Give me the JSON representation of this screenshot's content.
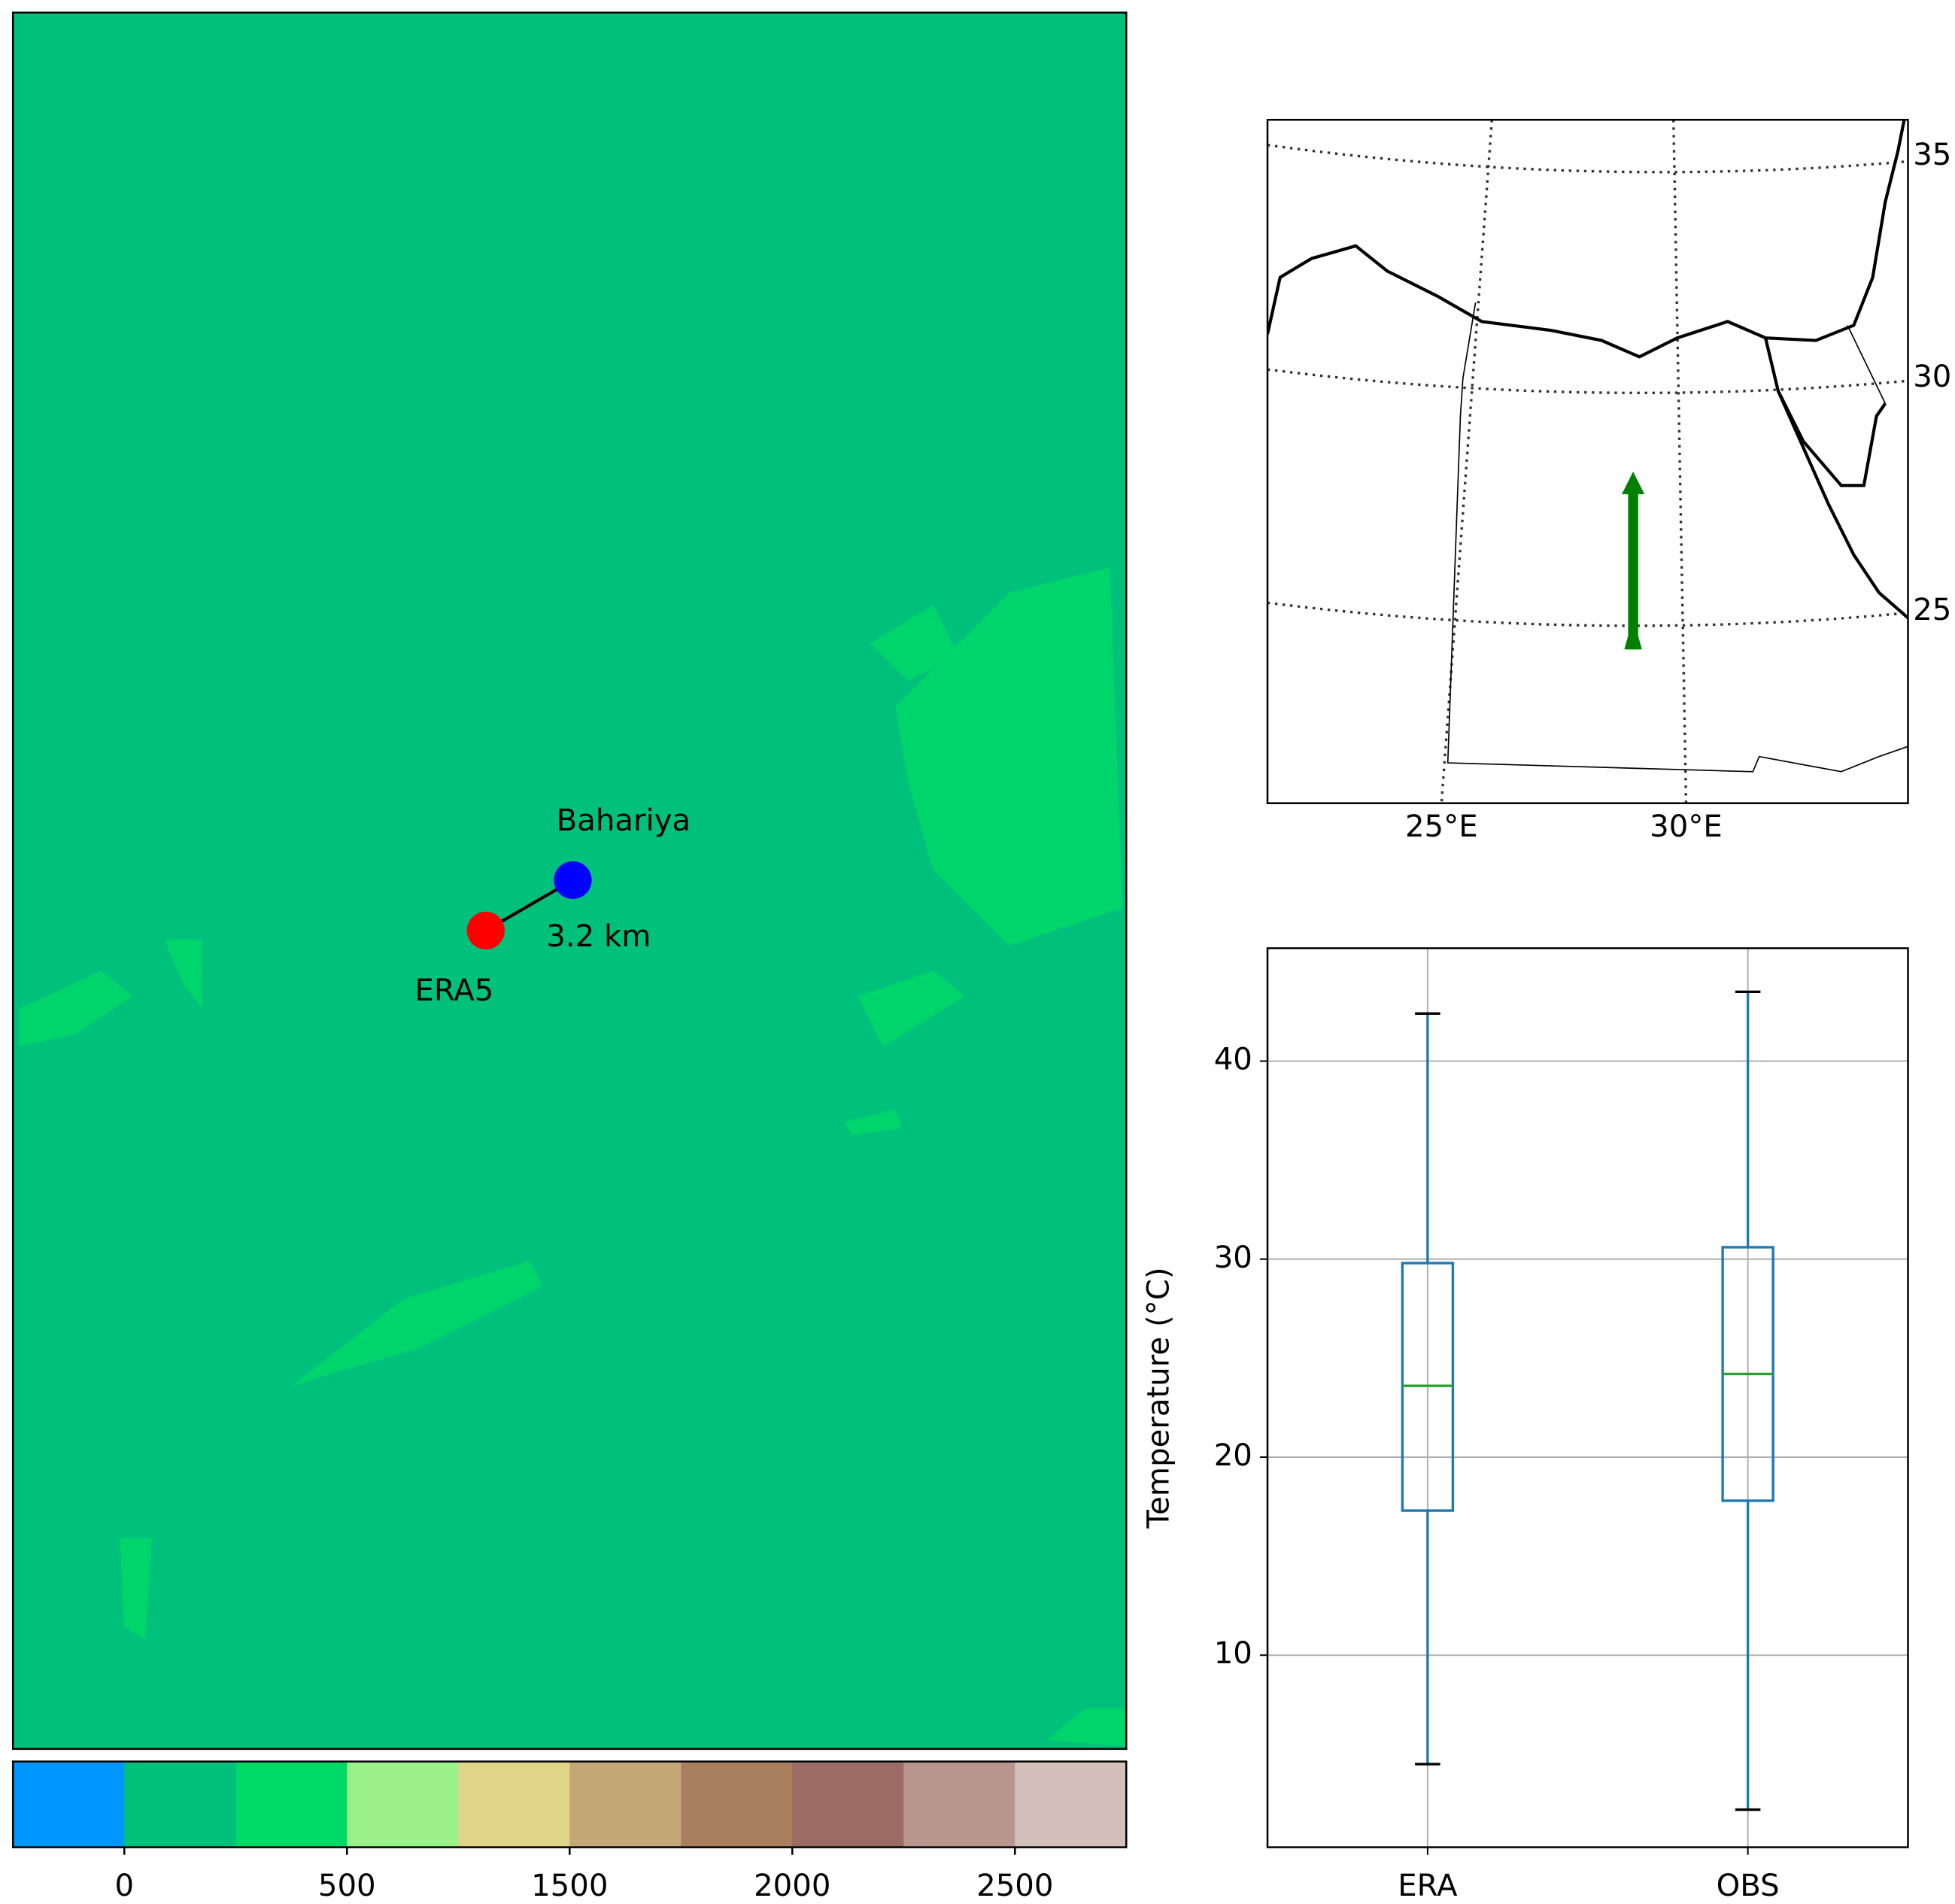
{
  "chart_data": [
    {
      "type": "map",
      "points": [
        {
          "name": "Bahariya",
          "color": "#0000ff"
        },
        {
          "name": "ERA5",
          "color": "#ff0000"
        }
      ],
      "annotation": "3.2 km",
      "background": "#00c17c",
      "colorbar": {
        "colors": [
          "#0096ff",
          "#00c07c",
          "#00d966",
          "#9cf08a",
          "#e0d488",
          "#c4a878",
          "#a88060",
          "#9a6c64",
          "#b8968e",
          "#d4c0ba"
        ],
        "ticks": [
          0,
          500,
          1500,
          2000,
          2500
        ]
      }
    },
    {
      "type": "map",
      "xticks": [
        "25°E",
        "30°E"
      ],
      "yticks": [
        35,
        30,
        25
      ],
      "arrow_color": "#008000"
    },
    {
      "type": "box",
      "categories": [
        "ERA",
        "OBS"
      ],
      "boxes": [
        {
          "min": 4.5,
          "q1": 17.3,
          "median": 23.6,
          "q3": 29.8,
          "max": 42.4
        },
        {
          "min": 2.2,
          "q1": 17.8,
          "median": 24.2,
          "q3": 30.6,
          "max": 43.5
        }
      ],
      "ylabel": "Temperature (°C)",
      "ylim": [
        0.3,
        45.7
      ],
      "yticks": [
        10,
        20,
        30,
        40
      ],
      "grid": true,
      "box_color": "#1f77b4",
      "median_color": "#2ca02c"
    }
  ]
}
